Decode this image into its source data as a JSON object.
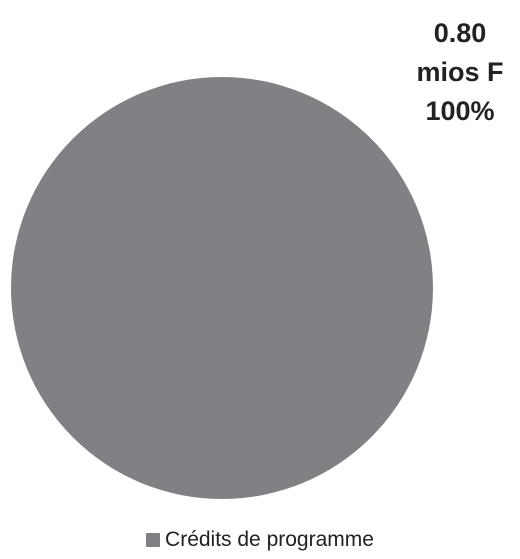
{
  "chart_data": {
    "type": "pie",
    "title": "",
    "categories": [
      "Crédits de programme"
    ],
    "values": [
      0.8
    ],
    "unit": "mios F",
    "percentages": [
      "100%"
    ],
    "data_label": {
      "value": "0.80",
      "unit": "mios F",
      "percent": "100%"
    },
    "colors": [
      "#808185"
    ],
    "legend": {
      "position": "bottom",
      "entries": [
        "Crédits de programme"
      ]
    }
  }
}
